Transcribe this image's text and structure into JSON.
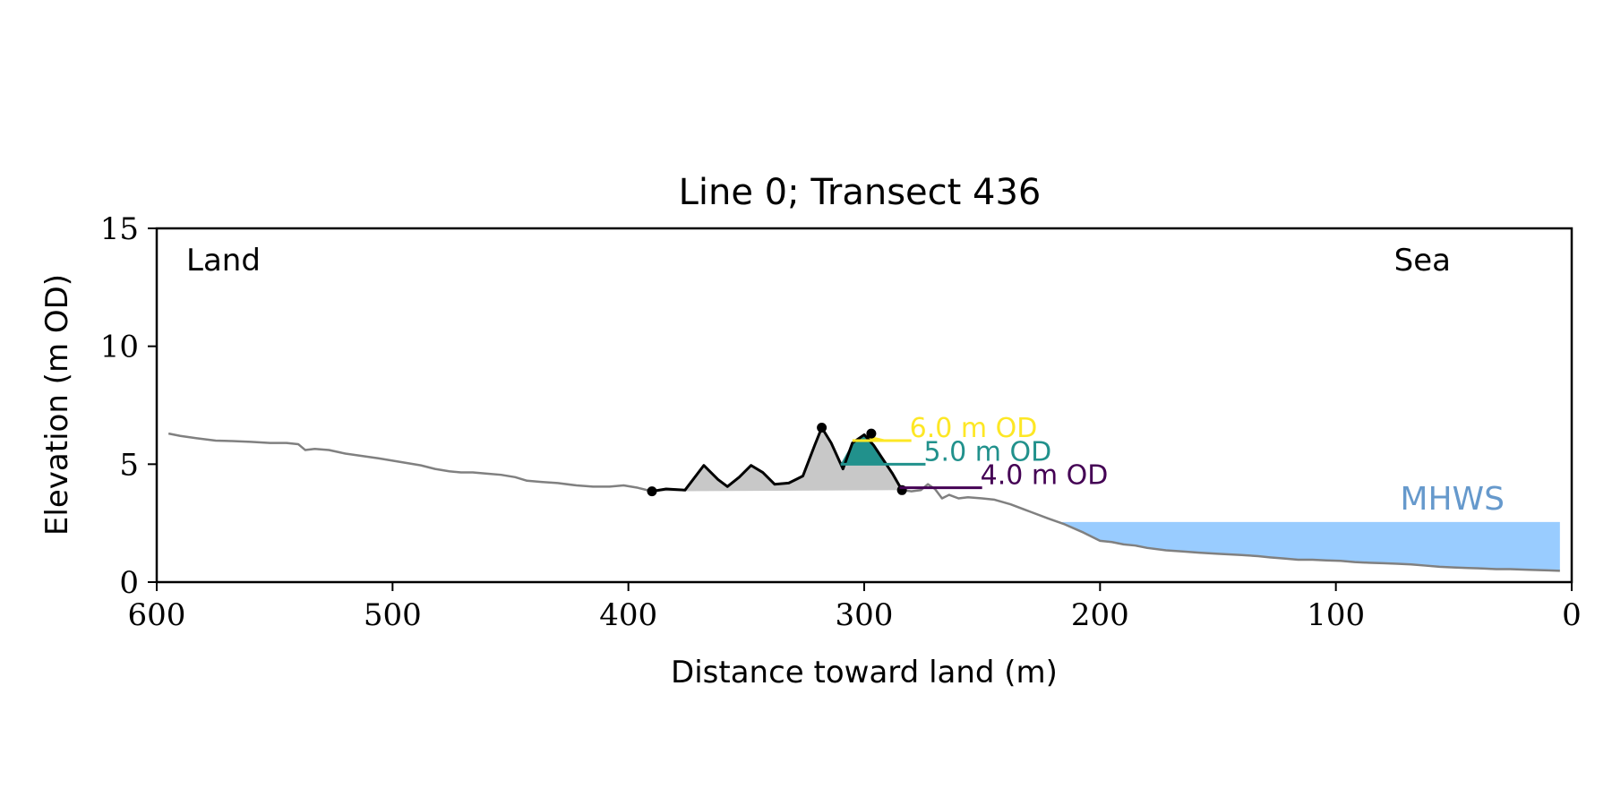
{
  "chart_data": {
    "type": "line",
    "title": "Line 0; Transect 436",
    "xlabel": "Distance toward land (m)",
    "ylabel": "Elevation (m OD)",
    "xlim": [
      600,
      0
    ],
    "ylim": [
      0,
      15
    ],
    "xticks": [
      600,
      500,
      400,
      300,
      200,
      100,
      0
    ],
    "yticks": [
      0,
      5,
      10,
      15
    ],
    "x_tick_labels": [
      "600",
      "500",
      "400",
      "300",
      "200",
      "100",
      "0"
    ],
    "y_tick_labels": [
      "0",
      "5",
      "10",
      "15"
    ],
    "land_label": "Land",
    "sea_label": "Sea",
    "grid": false,
    "profile": {
      "color": "#808080",
      "x": [
        595,
        590,
        583,
        575,
        568,
        560,
        552,
        545,
        540,
        537,
        533,
        527,
        520,
        513,
        506,
        500,
        494,
        488,
        482,
        476,
        471,
        466,
        460,
        454,
        448,
        443,
        437,
        430,
        422,
        415,
        408,
        402,
        396,
        390,
        384,
        376,
        368,
        362,
        358,
        353,
        348,
        343,
        338,
        332,
        326,
        321,
        318,
        314,
        309,
        305,
        300,
        296,
        292,
        288,
        284,
        280,
        276,
        273,
        270,
        267,
        264,
        260,
        256,
        250,
        245,
        238,
        230,
        222,
        215,
        207,
        200,
        195,
        190,
        185,
        180,
        172,
        165,
        158,
        150,
        140,
        133,
        128,
        122,
        116,
        110,
        104,
        98,
        92,
        86,
        80,
        74,
        68,
        62,
        56,
        50,
        44,
        38,
        32,
        26,
        18,
        10,
        5
      ],
      "y": [
        6.3,
        6.2,
        6.1,
        6.0,
        5.98,
        5.95,
        5.9,
        5.9,
        5.85,
        5.6,
        5.65,
        5.6,
        5.45,
        5.35,
        5.25,
        5.15,
        5.05,
        4.95,
        4.8,
        4.7,
        4.65,
        4.65,
        4.6,
        4.55,
        4.45,
        4.3,
        4.25,
        4.2,
        4.1,
        4.05,
        4.05,
        4.1,
        4.0,
        3.85,
        3.95,
        3.9,
        4.95,
        4.35,
        4.05,
        4.45,
        4.95,
        4.65,
        4.15,
        4.2,
        4.5,
        5.8,
        6.55,
        5.9,
        4.8,
        5.9,
        6.25,
        5.8,
        5.2,
        4.6,
        3.9,
        3.85,
        3.9,
        4.15,
        3.95,
        3.55,
        3.7,
        3.55,
        3.6,
        3.55,
        3.5,
        3.3,
        3.0,
        2.7,
        2.45,
        2.1,
        1.75,
        1.7,
        1.6,
        1.55,
        1.45,
        1.35,
        1.3,
        1.25,
        1.2,
        1.15,
        1.1,
        1.05,
        1.0,
        0.95,
        0.95,
        0.92,
        0.9,
        0.85,
        0.82,
        0.8,
        0.78,
        0.75,
        0.7,
        0.65,
        0.62,
        0.6,
        0.58,
        0.55,
        0.55,
        0.52,
        0.5,
        0.48
      ]
    },
    "dune": {
      "color": "#000000",
      "fill_color": "#c8c8c8",
      "x": [
        390,
        384,
        376,
        368,
        362,
        358,
        353,
        348,
        343,
        338,
        332,
        326,
        321,
        318,
        314,
        309,
        305,
        300,
        296,
        292,
        288,
        284
      ],
      "y": [
        3.85,
        3.95,
        3.9,
        4.95,
        4.35,
        4.05,
        4.45,
        4.95,
        4.65,
        4.15,
        4.2,
        4.5,
        5.8,
        6.55,
        5.9,
        4.8,
        5.9,
        6.25,
        5.8,
        5.2,
        4.6,
        3.9
      ],
      "markers": [
        [
          390,
          3.85
        ],
        [
          318,
          6.55
        ],
        [
          297,
          6.3
        ],
        [
          284,
          3.9
        ]
      ]
    },
    "levels": [
      {
        "label": "6.0 m OD",
        "value": 6.0,
        "color": "#fde725",
        "x_start": 305,
        "x_end": 289,
        "line_x_end": 280
      },
      {
        "label": "5.0 m OD",
        "value": 5.0,
        "color": "#21918c",
        "x_start": 310,
        "x_end": 290,
        "line_x_end": 274
      },
      {
        "label": "4.0 m OD",
        "value": 4.0,
        "color": "#440154",
        "x_start": 285,
        "x_end": 283,
        "line_x_end": 250
      }
    ],
    "mhws": {
      "label": "MHWS",
      "value": 2.55,
      "x_start": 216,
      "x_end": 5,
      "color": "#99ccff",
      "label_color": "#6699cc"
    }
  }
}
